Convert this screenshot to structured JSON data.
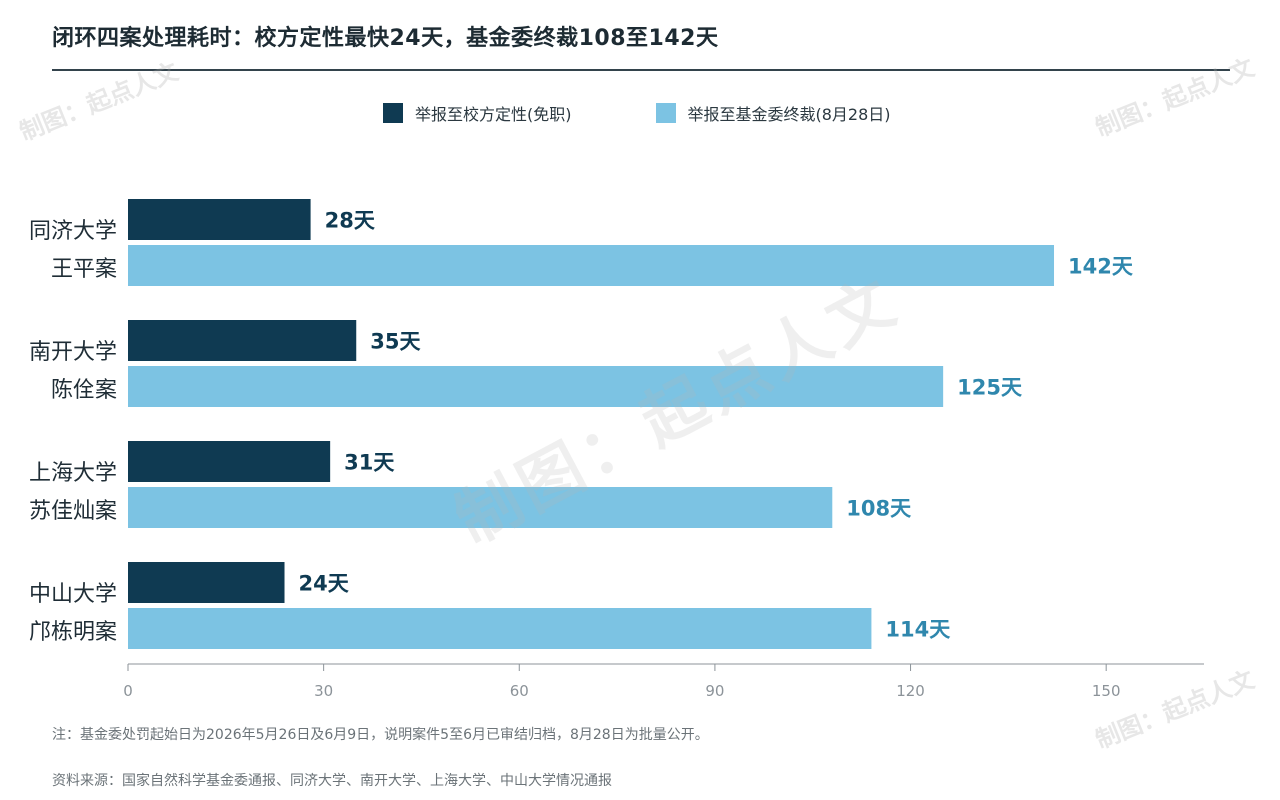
{
  "title": "闭环四案处理耗时：校方定性最快24天，基金委终裁108至142天",
  "watermark": "制图：起点人文",
  "colors": {
    "dark": "#0f3a52",
    "light": "#7cc3e3",
    "light_label": "#2f87ad",
    "axis": "#8c9399"
  },
  "chart_data": {
    "type": "bar",
    "orientation": "horizontal",
    "categories": [
      {
        "lines": [
          "同济大学",
          "王平案"
        ]
      },
      {
        "lines": [
          "南开大学",
          "陈佺案"
        ]
      },
      {
        "lines": [
          "上海大学",
          "苏佳灿案"
        ]
      },
      {
        "lines": [
          "中山大学",
          "邝栋明案"
        ]
      }
    ],
    "series": [
      {
        "name": "举报至校方定性(免职)",
        "values": [
          28,
          35,
          31,
          24
        ],
        "labels": [
          "28天",
          "35天",
          "31天",
          "24天"
        ]
      },
      {
        "name": "举报至基金委终裁(8月28日)",
        "values": [
          142,
          125,
          108,
          114
        ],
        "labels": [
          "142天",
          "125天",
          "108天",
          "114天"
        ]
      }
    ],
    "xlim": [
      0,
      165
    ],
    "xticks": [
      0,
      30,
      60,
      90,
      120,
      150
    ],
    "legend_position": "top",
    "grid": false
  },
  "notes": {
    "footnote": "注：基金委处罚起始日为2026年5月26日及6月9日，说明案件5至6月已审结归档，8月28日为批量公开。",
    "source": "资料来源：国家自然科学基金委通报、同济大学、南开大学、上海大学、中山大学情况通报"
  }
}
